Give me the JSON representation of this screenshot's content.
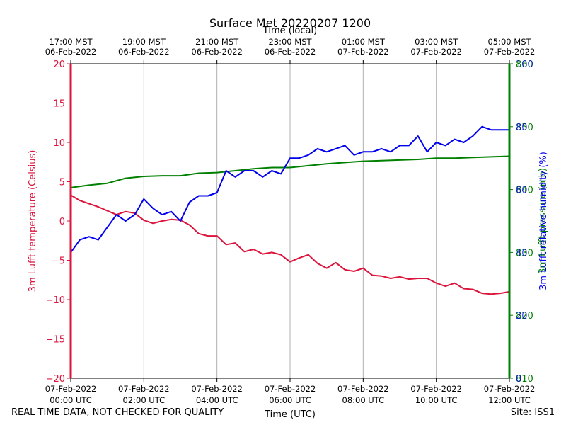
{
  "chart_data": {
    "type": "line",
    "title": "Surface Met 20220207 1200",
    "xlabel_top": "Time (local)",
    "xlabel": "Time (UTC)",
    "ylabel_left": "3m Lufft temperature (Celsius)",
    "ylabel_right_rh": "3m Lufft relative humidity (%)",
    "ylabel_right_pressure": "3m Lufft pressure (mb)",
    "x_hours_range": [
      0,
      12
    ],
    "ylim_left": [
      -20,
      20
    ],
    "ylim_right_rh": [
      0,
      100
    ],
    "ylim_right_pressure": [
      810,
      860
    ],
    "grid": "vertical",
    "ticks_left": [
      "−20",
      "−15",
      "−10",
      "−5",
      "0",
      "5",
      "10",
      "15",
      "20"
    ],
    "ticks_right_rh": [
      "0",
      "20",
      "40",
      "60",
      "80",
      "100"
    ],
    "ticks_right_pressure": [
      "810",
      "820",
      "830",
      "840",
      "850",
      "860"
    ],
    "ticks_bottom": [
      {
        "hour": 0,
        "line1": "07-Feb-2022",
        "line2": "00:00 UTC"
      },
      {
        "hour": 2,
        "line1": "07-Feb-2022",
        "line2": "02:00 UTC"
      },
      {
        "hour": 4,
        "line1": "07-Feb-2022",
        "line2": "04:00 UTC"
      },
      {
        "hour": 6,
        "line1": "07-Feb-2022",
        "line2": "06:00 UTC"
      },
      {
        "hour": 8,
        "line1": "07-Feb-2022",
        "line2": "08:00 UTC"
      },
      {
        "hour": 10,
        "line1": "07-Feb-2022",
        "line2": "10:00 UTC"
      },
      {
        "hour": 12,
        "line1": "07-Feb-2022",
        "line2": "12:00 UTC"
      }
    ],
    "ticks_top": [
      {
        "hour": 0,
        "line1": "17:00 MST",
        "line2": "06-Feb-2022"
      },
      {
        "hour": 2,
        "line1": "19:00 MST",
        "line2": "06-Feb-2022"
      },
      {
        "hour": 4,
        "line1": "21:00 MST",
        "line2": "06-Feb-2022"
      },
      {
        "hour": 6,
        "line1": "23:00 MST",
        "line2": "06-Feb-2022"
      },
      {
        "hour": 8,
        "line1": "01:00 MST",
        "line2": "07-Feb-2022"
      },
      {
        "hour": 10,
        "line1": "03:00 MST",
        "line2": "07-Feb-2022"
      },
      {
        "hour": 12,
        "line1": "05:00 MST",
        "line2": "07-Feb-2022"
      }
    ],
    "series": [
      {
        "name": "temperature",
        "axis": "left",
        "color": "#dc143c",
        "x": [
          0,
          0.25,
          0.5,
          0.75,
          1,
          1.25,
          1.5,
          1.75,
          2,
          2.25,
          2.5,
          2.75,
          3,
          3.25,
          3.5,
          3.75,
          4,
          4.25,
          4.5,
          4.75,
          5,
          5.25,
          5.5,
          5.75,
          6,
          6.25,
          6.5,
          6.75,
          7,
          7.25,
          7.5,
          7.75,
          8,
          8.25,
          8.5,
          8.75,
          9,
          9.25,
          9.5,
          9.75,
          10,
          10.25,
          10.5,
          10.75,
          11,
          11.25,
          11.5,
          11.75,
          12
        ],
        "values": [
          3.3,
          2.6,
          2.2,
          1.8,
          1.3,
          0.8,
          1.2,
          1.0,
          0.1,
          -0.3,
          0.0,
          0.2,
          0.1,
          -0.5,
          -1.6,
          -1.9,
          -1.9,
          -3.0,
          -2.8,
          -3.9,
          -3.6,
          -4.2,
          -4.0,
          -4.3,
          -5.2,
          -4.7,
          -4.3,
          -5.4,
          -6.0,
          -5.3,
          -6.2,
          -6.4,
          -6.0,
          -6.9,
          -7.0,
          -7.3,
          -7.1,
          -7.4,
          -7.3,
          -7.3,
          -7.9,
          -8.3,
          -7.9,
          -8.6,
          -8.7,
          -9.2,
          -9.3,
          -9.2,
          -9.0
        ]
      },
      {
        "name": "relative humidity",
        "axis": "right_rh",
        "color": "#0000ee",
        "x": [
          0,
          0.25,
          0.5,
          0.75,
          1,
          1.25,
          1.5,
          1.75,
          2,
          2.25,
          2.5,
          2.75,
          3,
          3.25,
          3.5,
          3.75,
          4,
          4.25,
          4.5,
          4.75,
          5,
          5.25,
          5.5,
          5.75,
          6,
          6.25,
          6.5,
          6.75,
          7,
          7.25,
          7.5,
          7.75,
          8,
          8.25,
          8.5,
          8.75,
          9,
          9.25,
          9.5,
          9.75,
          10,
          10.25,
          10.5,
          10.75,
          11,
          11.25,
          11.5,
          11.75,
          12
        ],
        "values": [
          40,
          44,
          45,
          44,
          48,
          52,
          50,
          52,
          57,
          54,
          52,
          53,
          50,
          56,
          58,
          58,
          59,
          66,
          64,
          66,
          66,
          64,
          66,
          65,
          70,
          70,
          71,
          73,
          72,
          73,
          74,
          71,
          72,
          72,
          73,
          72,
          74,
          74,
          77,
          72,
          75,
          74,
          76,
          75,
          77,
          80,
          79,
          79,
          79
        ]
      },
      {
        "name": "pressure",
        "axis": "right_pressure",
        "color": "#008000",
        "x": [
          0,
          0.5,
          1,
          1.5,
          2,
          2.5,
          3,
          3.5,
          4,
          4.5,
          5,
          5.5,
          6,
          6.5,
          7,
          7.5,
          8,
          8.5,
          9,
          9.5,
          10,
          10.5,
          11,
          11.5,
          12
        ],
        "values": [
          840.3,
          840.7,
          841.0,
          841.8,
          842.1,
          842.2,
          842.2,
          842.6,
          842.7,
          843.0,
          843.3,
          843.5,
          843.5,
          843.8,
          844.1,
          844.3,
          844.5,
          844.6,
          844.7,
          844.8,
          845.0,
          845.0,
          845.1,
          845.2,
          845.3
        ]
      }
    ]
  },
  "footer": {
    "left_note": "REAL TIME DATA, NOT CHECKED FOR QUALITY",
    "site": "Site: ISS1"
  }
}
